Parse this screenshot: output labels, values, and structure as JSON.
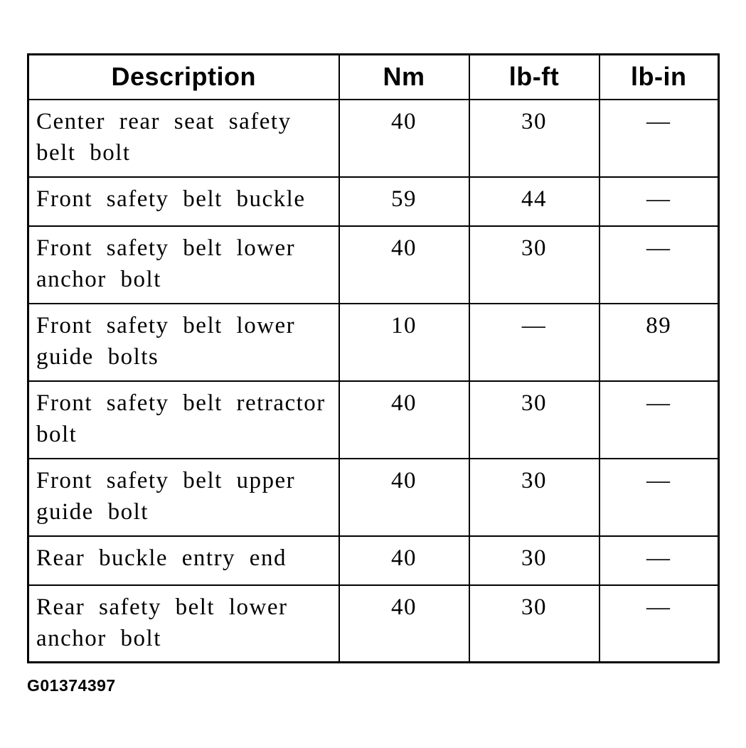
{
  "colors": {
    "ink": "#000000",
    "background": "#ffffff"
  },
  "table": {
    "headers": [
      "Description",
      "Nm",
      "lb-ft",
      "lb-in"
    ],
    "rows": [
      {
        "description": "Center rear seat safety belt bolt",
        "nm": "40",
        "lb_ft": "30",
        "lb_in": "—"
      },
      {
        "description": "Front safety belt buckle",
        "nm": "59",
        "lb_ft": "44",
        "lb_in": "—"
      },
      {
        "description": "Front safety belt lower anchor bolt",
        "nm": "40",
        "lb_ft": "30",
        "lb_in": "—"
      },
      {
        "description": "Front safety belt lower guide bolts",
        "nm": "10",
        "lb_ft": "—",
        "lb_in": "89"
      },
      {
        "description": "Front safety belt retractor bolt",
        "nm": "40",
        "lb_ft": "30",
        "lb_in": "—"
      },
      {
        "description": "Front safety belt upper guide bolt",
        "nm": "40",
        "lb_ft": "30",
        "lb_in": "—"
      },
      {
        "description": "Rear buckle entry end",
        "nm": "40",
        "lb_ft": "30",
        "lb_in": "—"
      },
      {
        "description": "Rear safety belt lower anchor bolt",
        "nm": "40",
        "lb_ft": "30",
        "lb_in": "—"
      }
    ]
  },
  "figure_id": "G01374397"
}
